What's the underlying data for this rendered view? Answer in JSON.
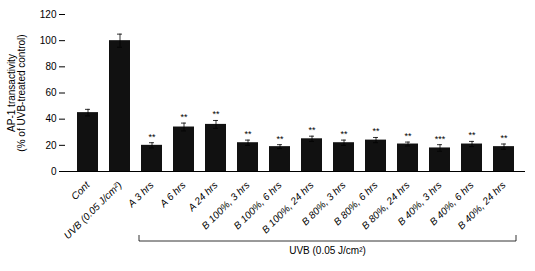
{
  "chart_data": {
    "type": "bar",
    "categories": [
      "Cont",
      "UVB (0.05 J/cm²)",
      "A 3 hrs",
      "A 6 hrs",
      "A 24 hrs",
      "B 100%, 3 hrs",
      "B 100%, 6 hrs",
      "B 100%, 24 hrs",
      "B 80%, 3 hrs",
      "B 80%, 6 hrs",
      "B 80%, 24 hrs",
      "B 40%, 3 hrs",
      "B 40%, 6 hrs",
      "B 40%, 24 hrs"
    ],
    "values": [
      45,
      100,
      20,
      34,
      36,
      22,
      19,
      25,
      22,
      24,
      21,
      18,
      21,
      19
    ],
    "errors": [
      2.5,
      5.0,
      2.0,
      3.0,
      3.0,
      2.0,
      1.5,
      2.0,
      2.0,
      2.0,
      1.5,
      2.5,
      2.0,
      2.0
    ],
    "color": "#111111",
    "ylabel": "AP-1 transactivity\n(% of UVB-treated control)",
    "ylim": [
      0,
      120
    ],
    "yticks": [
      0,
      20,
      40,
      60,
      80,
      100,
      120
    ],
    "annotations": [
      null,
      null,
      "**",
      "**",
      "**",
      "**",
      "**",
      "**",
      "**",
      "**",
      "**",
      "***",
      "**",
      "**"
    ],
    "bracket": {
      "label": "UVB (0.05 J/cm²)",
      "from": "A 3 hrs",
      "to": "B 40%, 24 hrs"
    },
    "grid": false
  }
}
